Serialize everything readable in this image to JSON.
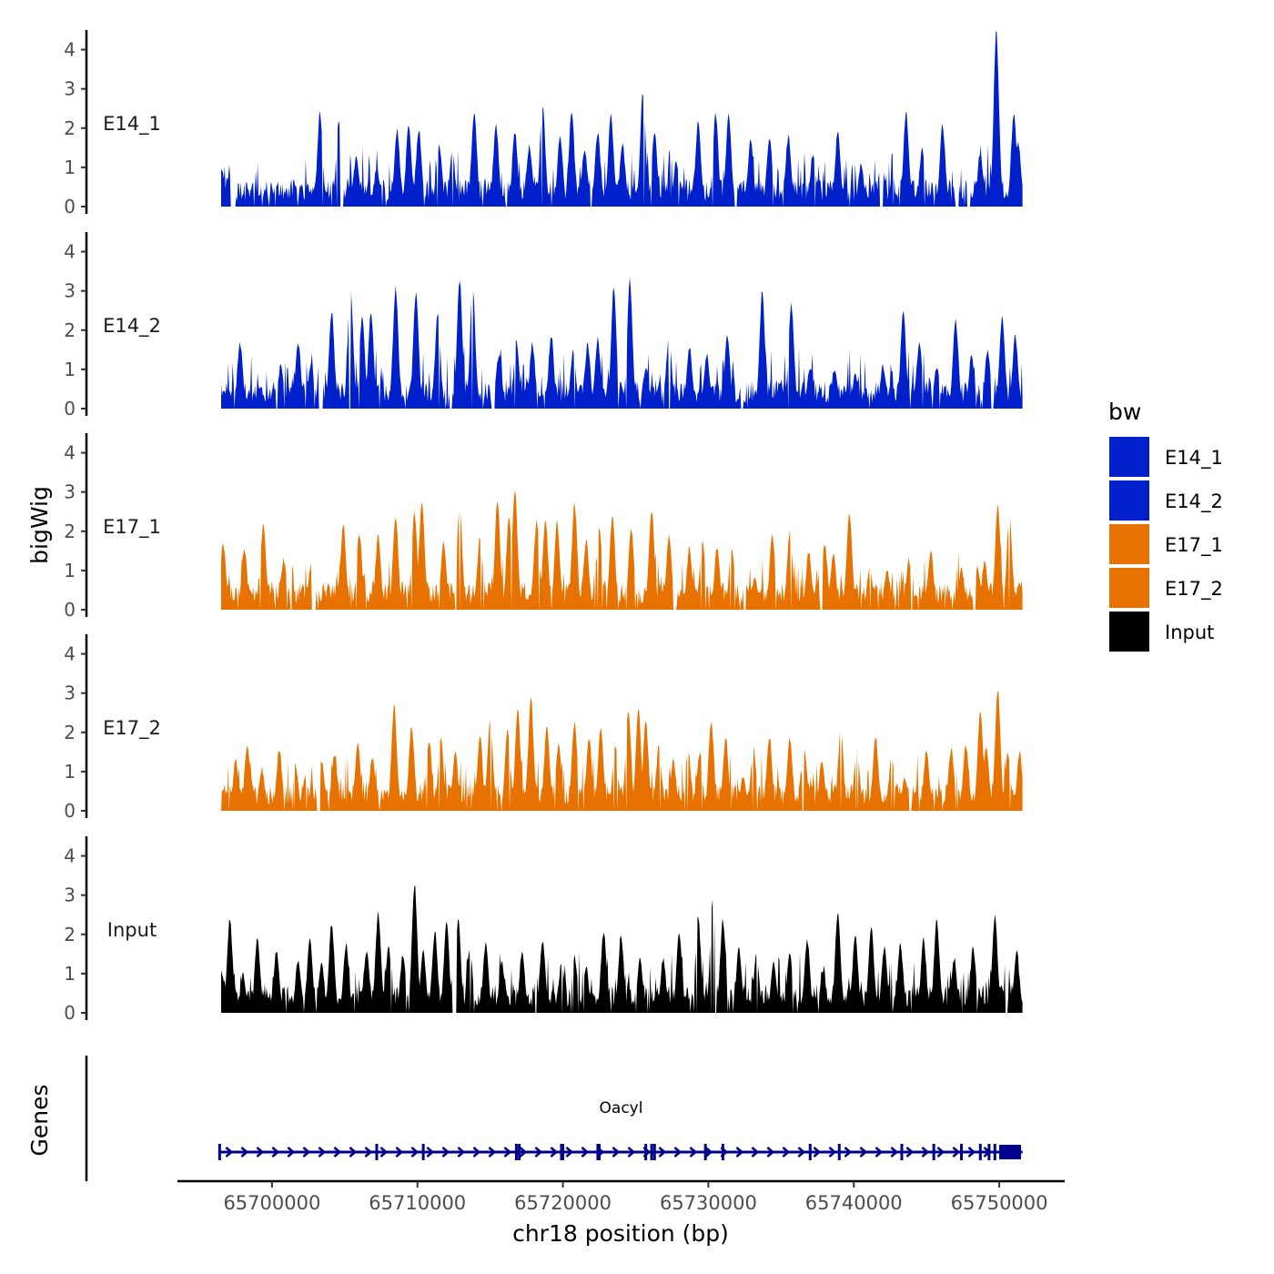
{
  "chart_data": {
    "type": "area",
    "ylabel": "bigWig",
    "xlabel": "chr18 position (bp)",
    "genes_label": "Genes",
    "gene_name": "Oacyl",
    "ylim": [
      0,
      4.5
    ],
    "yticks": [
      "0",
      "1",
      "2",
      "3",
      "4"
    ],
    "xlim": [
      65693500,
      65754500
    ],
    "data_range": [
      65696500,
      65751600
    ],
    "xticks": [
      {
        "value": 65700000,
        "label": "65700000"
      },
      {
        "value": 65710000,
        "label": "65710000"
      },
      {
        "value": 65720000,
        "label": "65720000"
      },
      {
        "value": 65730000,
        "label": "65730000"
      },
      {
        "value": 65740000,
        "label": "65740000"
      },
      {
        "value": 65750000,
        "label": "65750000"
      }
    ],
    "legend_title": "bw",
    "legend_position": "right",
    "series": [
      {
        "name": "E14_1",
        "color": "#0020CC",
        "peaks": [
          [
            65696550,
            0.9
          ],
          [
            65697100,
            0.8
          ],
          [
            65698700,
            0.5
          ],
          [
            65703300,
            2.3
          ],
          [
            65704600,
            2.1
          ],
          [
            65705800,
            1.2
          ],
          [
            65707200,
            0.9
          ],
          [
            65708600,
            1.9
          ],
          [
            65709400,
            2.0
          ],
          [
            65710100,
            1.9
          ],
          [
            65711500,
            1.5
          ],
          [
            65712400,
            1.3
          ],
          [
            65713900,
            2.3
          ],
          [
            65715400,
            2.0
          ],
          [
            65716700,
            1.8
          ],
          [
            65717700,
            1.5
          ],
          [
            65718600,
            2.5
          ],
          [
            65719800,
            1.7
          ],
          [
            65720600,
            2.4
          ],
          [
            65721500,
            1.4
          ],
          [
            65722400,
            1.8
          ],
          [
            65723300,
            2.3
          ],
          [
            65724100,
            1.5
          ],
          [
            65725500,
            2.8
          ],
          [
            65726300,
            1.8
          ],
          [
            65727800,
            1.1
          ],
          [
            65729300,
            2.1
          ],
          [
            65730500,
            2.3
          ],
          [
            65731400,
            2.3
          ],
          [
            65732900,
            1.6
          ],
          [
            65734200,
            1.7
          ],
          [
            65735500,
            1.7
          ],
          [
            65737200,
            1.3
          ],
          [
            65738900,
            1.8
          ],
          [
            65740500,
            1.0
          ],
          [
            65741900,
            1.2
          ],
          [
            65743600,
            2.3
          ],
          [
            65744700,
            1.4
          ],
          [
            65746100,
            2.0
          ],
          [
            65748700,
            1.3
          ],
          [
            65749800,
            4.4
          ],
          [
            65751000,
            2.3
          ],
          [
            65751300,
            1.6
          ]
        ],
        "gaps": [
          [
            65697200,
            65697500
          ],
          [
            65704700,
            65704900
          ],
          [
            65731800,
            65732000
          ],
          [
            65741800,
            65742000
          ],
          [
            65747000,
            65747200
          ],
          [
            65747800,
            65748000
          ]
        ]
      },
      {
        "name": "E14_2",
        "color": "#0020CC",
        "peaks": [
          [
            65696700,
            0.4
          ],
          [
            65697800,
            1.6
          ],
          [
            65699200,
            0.5
          ],
          [
            65700600,
            1.0
          ],
          [
            65701800,
            1.6
          ],
          [
            65702700,
            1.1
          ],
          [
            65704100,
            2.4
          ],
          [
            65705400,
            3.0
          ],
          [
            65706200,
            2.3
          ],
          [
            65706800,
            2.4
          ],
          [
            65708500,
            3.0
          ],
          [
            65709900,
            2.9
          ],
          [
            65711400,
            2.4
          ],
          [
            65712900,
            3.2
          ],
          [
            65713800,
            3.0
          ],
          [
            65715600,
            1.3
          ],
          [
            65716800,
            1.7
          ],
          [
            65717900,
            1.6
          ],
          [
            65719200,
            1.8
          ],
          [
            65720700,
            1.4
          ],
          [
            65721700,
            1.6
          ],
          [
            65722400,
            1.7
          ],
          [
            65723500,
            3.0
          ],
          [
            65724600,
            3.2
          ],
          [
            65725700,
            1.0
          ],
          [
            65727300,
            1.8
          ],
          [
            65728700,
            1.5
          ],
          [
            65729900,
            1.3
          ],
          [
            65731300,
            1.8
          ],
          [
            65733700,
            2.9
          ],
          [
            65735700,
            2.6
          ],
          [
            65737000,
            1.0
          ],
          [
            65738700,
            0.9
          ],
          [
            65740100,
            0.8
          ],
          [
            65742000,
            1.0
          ],
          [
            65743400,
            2.4
          ],
          [
            65744500,
            1.6
          ],
          [
            65745700,
            1.0
          ],
          [
            65747000,
            2.2
          ],
          [
            65748100,
            1.3
          ],
          [
            65749200,
            1.4
          ],
          [
            65750200,
            2.3
          ],
          [
            65751100,
            1.8
          ]
        ],
        "gaps": [
          [
            65703200,
            65703500
          ],
          [
            65712200,
            65712400
          ],
          [
            65715100,
            65715300
          ],
          [
            65732200,
            65732400
          ],
          [
            65749400,
            65749600
          ]
        ]
      },
      {
        "name": "E17_1",
        "color": "#E87200",
        "peaks": [
          [
            65696650,
            1.6
          ],
          [
            65698100,
            1.5
          ],
          [
            65699400,
            2.1
          ],
          [
            65700800,
            1.2
          ],
          [
            65702700,
            1.1
          ],
          [
            65704900,
            2.1
          ],
          [
            65706000,
            1.9
          ],
          [
            65707300,
            1.8
          ],
          [
            65708500,
            2.3
          ],
          [
            65709800,
            2.4
          ],
          [
            65710300,
            2.7
          ],
          [
            65711800,
            1.6
          ],
          [
            65712900,
            2.6
          ],
          [
            65714300,
            1.8
          ],
          [
            65715500,
            2.7
          ],
          [
            65716300,
            2.3
          ],
          [
            65716700,
            3.0
          ],
          [
            65718200,
            2.2
          ],
          [
            65718800,
            2.2
          ],
          [
            65719600,
            2.2
          ],
          [
            65720800,
            2.6
          ],
          [
            65721600,
            1.7
          ],
          [
            65722500,
            2.0
          ],
          [
            65723400,
            2.3
          ],
          [
            65724700,
            2.0
          ],
          [
            65726100,
            2.5
          ],
          [
            65727300,
            1.8
          ],
          [
            65728700,
            1.5
          ],
          [
            65729600,
            1.7
          ],
          [
            65730600,
            1.5
          ],
          [
            65731600,
            1.5
          ],
          [
            65733200,
            0.8
          ],
          [
            65734400,
            1.8
          ],
          [
            65735600,
            1.9
          ],
          [
            65736900,
            1.4
          ],
          [
            65738000,
            1.6
          ],
          [
            65738600,
            1.4
          ],
          [
            65739700,
            2.4
          ],
          [
            65741100,
            1.0
          ],
          [
            65742300,
            0.9
          ],
          [
            65743800,
            1.2
          ],
          [
            65745300,
            1.4
          ],
          [
            65747400,
            1.0
          ],
          [
            65748500,
            1.0
          ],
          [
            65749000,
            1.2
          ],
          [
            65749900,
            2.6
          ],
          [
            65750700,
            2.3
          ],
          [
            65751400,
            0.6
          ]
        ],
        "gaps": [
          [
            65702700,
            65703000
          ],
          [
            65727600,
            65727800
          ],
          [
            65732400,
            65732600
          ],
          [
            65748200,
            65748400
          ]
        ]
      },
      {
        "name": "E17_2",
        "color": "#E87200",
        "peaks": [
          [
            65696600,
            0.2
          ],
          [
            65697500,
            1.2
          ],
          [
            65698300,
            1.6
          ],
          [
            65699300,
            1.0
          ],
          [
            65700500,
            1.5
          ],
          [
            65701600,
            1.1
          ],
          [
            65702300,
            0.8
          ],
          [
            65703400,
            1.2
          ],
          [
            65704300,
            1.4
          ],
          [
            65705900,
            1.6
          ],
          [
            65706900,
            1.3
          ],
          [
            65708400,
            2.6
          ],
          [
            65709600,
            2.1
          ],
          [
            65710800,
            1.7
          ],
          [
            65711600,
            1.8
          ],
          [
            65712600,
            1.4
          ],
          [
            65714300,
            1.8
          ],
          [
            65715000,
            2.3
          ],
          [
            65716200,
            2.0
          ],
          [
            65716900,
            2.5
          ],
          [
            65717800,
            2.8
          ],
          [
            65718900,
            2.1
          ],
          [
            65719700,
            1.6
          ],
          [
            65720800,
            2.2
          ],
          [
            65721800,
            1.8
          ],
          [
            65722600,
            2.0
          ],
          [
            65723600,
            1.6
          ],
          [
            65724500,
            2.5
          ],
          [
            65725200,
            2.5
          ],
          [
            65725700,
            2.2
          ],
          [
            65726600,
            1.6
          ],
          [
            65727600,
            1.2
          ],
          [
            65728600,
            1.5
          ],
          [
            65729400,
            1.4
          ],
          [
            65730200,
            2.2
          ],
          [
            65731200,
            1.8
          ],
          [
            65732400,
            0.8
          ],
          [
            65733100,
            1.5
          ],
          [
            65734200,
            1.8
          ],
          [
            65735600,
            1.8
          ],
          [
            65736600,
            1.5
          ],
          [
            65737800,
            1.2
          ],
          [
            65739100,
            2.0
          ],
          [
            65740200,
            1.5
          ],
          [
            65741500,
            1.8
          ],
          [
            65742600,
            1.3
          ],
          [
            65743500,
            0.8
          ],
          [
            65745000,
            1.5
          ],
          [
            65746700,
            1.5
          ],
          [
            65747700,
            1.6
          ],
          [
            65748700,
            2.5
          ],
          [
            65749100,
            1.6
          ],
          [
            65749900,
            3.0
          ],
          [
            65750600,
            1.4
          ],
          [
            65751400,
            1.4
          ]
        ],
        "gaps": [
          [
            65703100,
            65703300
          ],
          [
            65743800,
            65744000
          ]
        ]
      },
      {
        "name": "Input",
        "color": "#000000",
        "peaks": [
          [
            65696550,
            0.9
          ],
          [
            65697100,
            2.3
          ],
          [
            65698000,
            0.9
          ],
          [
            65699000,
            1.8
          ],
          [
            65700300,
            1.5
          ],
          [
            65701800,
            1.3
          ],
          [
            65702600,
            1.8
          ],
          [
            65703400,
            1.2
          ],
          [
            65704100,
            2.2
          ],
          [
            65705100,
            1.7
          ],
          [
            65706500,
            1.5
          ],
          [
            65707300,
            2.5
          ],
          [
            65708000,
            1.6
          ],
          [
            65709000,
            1.4
          ],
          [
            65709800,
            3.2
          ],
          [
            65710400,
            1.5
          ],
          [
            65711200,
            2.0
          ],
          [
            65712000,
            2.2
          ],
          [
            65712800,
            2.3
          ],
          [
            65713600,
            1.6
          ],
          [
            65714700,
            1.7
          ],
          [
            65715800,
            1.2
          ],
          [
            65717200,
            1.5
          ],
          [
            65718600,
            1.8
          ],
          [
            65719900,
            1.2
          ],
          [
            65720800,
            1.4
          ],
          [
            65721600,
            1.1
          ],
          [
            65722800,
            2.0
          ],
          [
            65724000,
            1.9
          ],
          [
            65725300,
            1.3
          ],
          [
            65726900,
            1.3
          ],
          [
            65728000,
            2.0
          ],
          [
            65729300,
            2.4
          ],
          [
            65730300,
            2.8
          ],
          [
            65731000,
            2.3
          ],
          [
            65732100,
            1.6
          ],
          [
            65733300,
            1.4
          ],
          [
            65734500,
            1.2
          ],
          [
            65735600,
            1.5
          ],
          [
            65736800,
            1.8
          ],
          [
            65737900,
            1.0
          ],
          [
            65738900,
            2.5
          ],
          [
            65740100,
            1.9
          ],
          [
            65741200,
            2.1
          ],
          [
            65742100,
            1.6
          ],
          [
            65743200,
            1.7
          ],
          [
            65744800,
            1.8
          ],
          [
            65745700,
            2.3
          ],
          [
            65746900,
            1.3
          ],
          [
            65748200,
            1.6
          ],
          [
            65749700,
            2.4
          ],
          [
            65750500,
            0.2
          ],
          [
            65751200,
            1.5
          ]
        ],
        "gaps": [
          [
            65712400,
            65712700
          ],
          [
            65750400,
            65750600
          ]
        ]
      }
    ],
    "gene_track": {
      "strand": "+",
      "start": 65696400,
      "end": 65751600,
      "exons": [
        65696400,
        65707200,
        65710400,
        65716800,
        65717000,
        65719900,
        65720000,
        65722400,
        65722500,
        65725700,
        65726100,
        65726300,
        65729800,
        65731000,
        65737000,
        65739000,
        65743300,
        65745500,
        65747400,
        65748700,
        65749300,
        65749700
      ],
      "utr_block": [
        65750000,
        65751500
      ]
    }
  }
}
